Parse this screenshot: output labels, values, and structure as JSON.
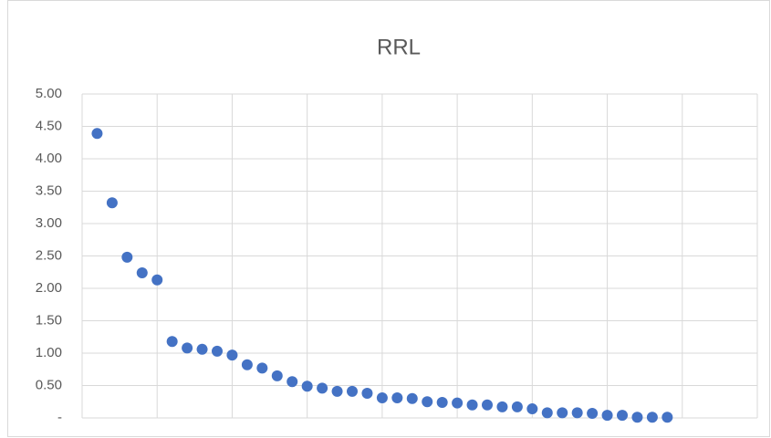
{
  "chart_data": {
    "type": "scatter",
    "title": "RRL",
    "series": [
      {
        "color": "#4472c4",
        "x": [
          1,
          2,
          3,
          4,
          5,
          6,
          7,
          8,
          9,
          10,
          11,
          12,
          13,
          14,
          15,
          16,
          17,
          18,
          19,
          20,
          21,
          22,
          23,
          24,
          25,
          26,
          27,
          28,
          29,
          30,
          31,
          32,
          33,
          34,
          35,
          36,
          37,
          38,
          39
        ],
        "values": [
          4.39,
          3.32,
          2.48,
          2.24,
          2.13,
          1.18,
          1.08,
          1.06,
          1.03,
          0.97,
          0.82,
          0.77,
          0.65,
          0.56,
          0.49,
          0.46,
          0.41,
          0.41,
          0.38,
          0.31,
          0.31,
          0.3,
          0.25,
          0.24,
          0.23,
          0.2,
          0.2,
          0.17,
          0.17,
          0.14,
          0.08,
          0.08,
          0.08,
          0.07,
          0.04,
          0.04,
          0.01,
          0.01,
          0.01
        ]
      }
    ],
    "xlim": [
      0,
      45
    ],
    "xticks": [
      0,
      5,
      10,
      15,
      20,
      25,
      30,
      35,
      40,
      45
    ],
    "ylim": [
      0,
      5
    ],
    "yticks": [
      {
        "value": 0,
        "label": "-"
      },
      {
        "value": 0.5,
        "label": "0.50"
      },
      {
        "value": 1,
        "label": "1.00"
      },
      {
        "value": 1.5,
        "label": "1.50"
      },
      {
        "value": 2,
        "label": "2.00"
      },
      {
        "value": 2.5,
        "label": "2.50"
      },
      {
        "value": 3,
        "label": "3.00"
      },
      {
        "value": 3.5,
        "label": "3.50"
      },
      {
        "value": 4,
        "label": "4.00"
      },
      {
        "value": 4.5,
        "label": "4.50"
      },
      {
        "value": 5,
        "label": "5.00"
      }
    ],
    "grid": true
  }
}
